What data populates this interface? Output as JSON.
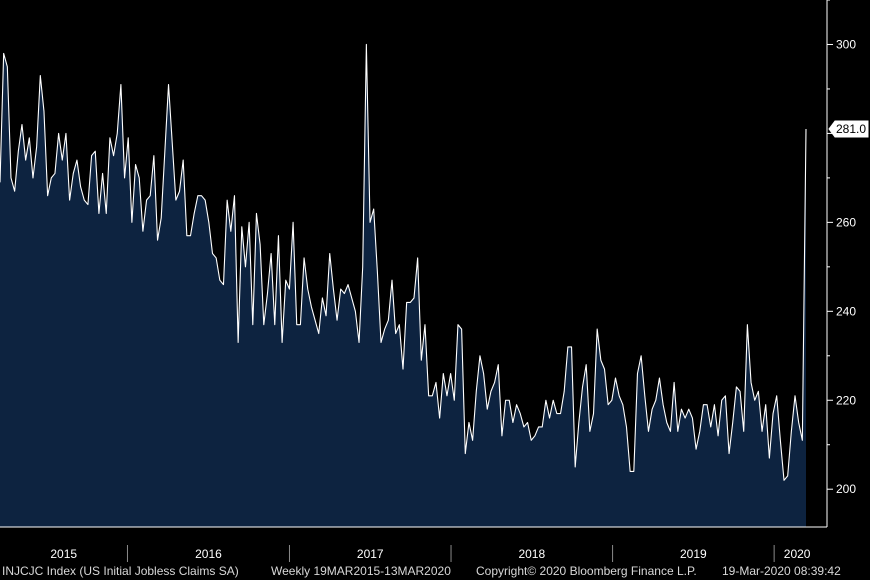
{
  "footer": {
    "ticker": "INJCJC Index (US Initial Jobless Claims SA)",
    "range": "Weekly 19MAR2015-13MAR2020",
    "copyright": "Copyright© 2020 Bloomberg Finance L.P.",
    "timestamp": "19-Mar-2020 08:39:42"
  },
  "chart_data": {
    "type": "area",
    "title": "",
    "xlabel": "",
    "ylabel": "",
    "x_tick_labels": [
      "2015",
      "2016",
      "2017",
      "2018",
      "2019",
      "2020"
    ],
    "y_ticks": [
      200,
      220,
      240,
      260,
      300
    ],
    "ylim": [
      191.5,
      310
    ],
    "x_range": [
      "2015-03-19",
      "2020-03-13"
    ],
    "last_value_label": "281.0",
    "y_axis_position": "right",
    "grid": false,
    "colors": {
      "fill": "#0d2340",
      "line": "#ffffff",
      "background": "#000000",
      "axis": "#ffffff"
    },
    "series": [
      {
        "values": [
          269,
          298,
          295,
          270,
          267,
          276,
          282,
          274,
          279,
          270,
          277,
          293,
          285,
          266,
          270,
          271,
          280,
          274,
          280,
          265,
          271,
          274,
          268,
          265,
          264,
          275,
          276,
          262,
          271,
          262,
          279,
          275,
          280,
          291,
          270,
          279,
          260,
          273,
          270,
          258,
          265,
          266,
          275,
          256,
          261,
          276,
          291,
          278,
          265,
          267,
          274,
          257,
          257,
          262,
          266,
          266,
          265,
          260,
          253,
          252,
          247,
          246,
          265,
          258,
          266,
          233,
          259,
          250,
          260,
          237,
          262,
          255,
          237,
          244,
          253,
          237,
          257,
          233,
          247,
          245,
          260,
          237,
          237,
          252,
          245,
          241,
          238,
          235,
          243,
          239,
          253,
          245,
          238,
          245,
          244,
          246,
          243,
          240,
          233,
          250,
          300,
          260,
          263,
          249,
          233,
          236,
          238,
          247,
          235,
          237,
          227,
          242,
          242,
          243,
          252,
          229,
          237,
          221,
          221,
          224,
          216,
          226,
          221,
          226,
          220,
          237,
          236,
          208,
          215,
          211,
          222,
          230,
          226,
          218,
          222,
          224,
          228,
          212,
          220,
          220,
          215,
          219,
          217,
          214,
          215,
          211,
          212,
          214,
          214,
          220,
          216,
          220,
          217,
          217,
          222,
          232,
          232,
          205,
          215,
          223,
          228,
          213,
          217,
          236,
          229,
          227,
          219,
          220,
          225,
          221,
          219,
          214,
          204,
          204,
          226,
          230,
          221,
          213,
          218,
          220,
          225,
          219,
          215,
          213,
          224,
          213,
          218,
          216,
          218,
          216,
          209,
          213,
          219,
          219,
          214,
          219,
          212,
          220,
          221,
          208,
          215,
          223,
          222,
          213,
          237,
          224,
          220,
          222,
          213,
          219,
          207,
          217,
          221,
          211,
          202,
          203,
          213,
          221,
          215,
          211,
          281
        ]
      }
    ]
  }
}
